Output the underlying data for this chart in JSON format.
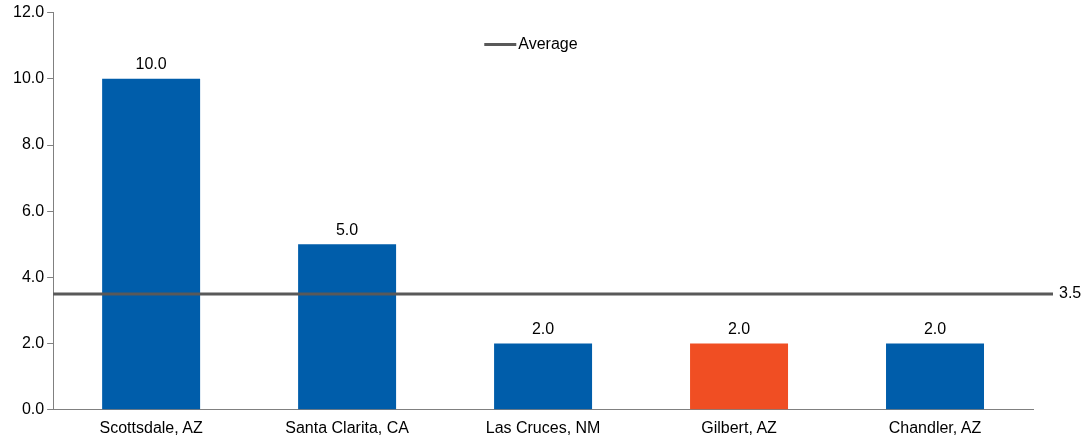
{
  "chart_data": {
    "type": "bar",
    "categories": [
      "Scottsdale, AZ",
      "Santa Clarita, CA",
      "Las Cruces, NM",
      "Gilbert, AZ",
      "Chandler, AZ"
    ],
    "values": [
      10.0,
      5.0,
      2.0,
      2.0,
      2.0
    ],
    "colors": [
      "#005daa",
      "#005daa",
      "#005daa",
      "#f04e23",
      "#005daa"
    ],
    "value_labels": [
      "10.0",
      "5.0",
      "2.0",
      "2.0",
      "2.0"
    ],
    "ylim": [
      0,
      12
    ],
    "yticks": [
      {
        "value": 0,
        "label": "0.0"
      },
      {
        "value": 2,
        "label": "2.0"
      },
      {
        "value": 4,
        "label": "4.0"
      },
      {
        "value": 6,
        "label": "6.0"
      },
      {
        "value": 8,
        "label": "8.0"
      },
      {
        "value": 10,
        "label": "10.0"
      },
      {
        "value": 12,
        "label": "12.0"
      }
    ],
    "ref_lines": [
      {
        "axis": "y",
        "value": 3.5,
        "label": "3.5",
        "color": "#595959"
      }
    ],
    "annotations": [
      "Average"
    ],
    "grid": false
  }
}
